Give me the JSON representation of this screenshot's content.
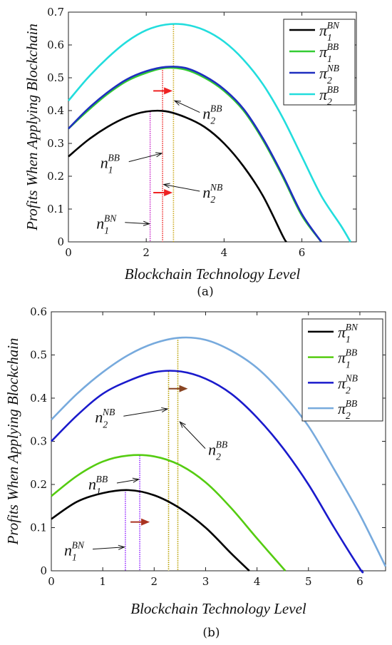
{
  "chart_data": [
    {
      "panel": "a",
      "type": "line",
      "caption": "(a)",
      "xlabel": "Blockchain Technology Level",
      "ylabel": "Profits When Applying Blockchain",
      "xlim": [
        0,
        7.4
      ],
      "ylim": [
        0,
        0.7
      ],
      "xticks": [
        0,
        2,
        4,
        6
      ],
      "yticks": [
        0,
        0.1,
        0.2,
        0.3,
        0.4,
        0.5,
        0.6,
        0.7
      ],
      "grid": false,
      "legend_position": "top-right",
      "series": [
        {
          "name": "π1BN",
          "base": "π",
          "sub": "1",
          "sup": "BN",
          "color": "#000000",
          "x": [
            0,
            0.5,
            1,
            1.5,
            2,
            2.5,
            3,
            3.5,
            4,
            4.5,
            5,
            5.5,
            5.6
          ],
          "y": [
            0.26,
            0.31,
            0.35,
            0.38,
            0.397,
            0.398,
            0.38,
            0.35,
            0.3,
            0.23,
            0.14,
            0.02,
            0
          ]
        },
        {
          "name": "π1BB",
          "base": "π",
          "sub": "1",
          "sup": "BB",
          "color": "#33cc33",
          "x": [
            0,
            0.5,
            1,
            1.5,
            2,
            2.5,
            3,
            3.5,
            4,
            4.5,
            5,
            5.5,
            6,
            6.5
          ],
          "y": [
            0.345,
            0.4,
            0.45,
            0.49,
            0.515,
            0.53,
            0.525,
            0.5,
            0.46,
            0.4,
            0.31,
            0.2,
            0.08,
            0
          ]
        },
        {
          "name": "π2NB",
          "base": "π",
          "sub": "2",
          "sup": "NB",
          "color": "#1f2fbf",
          "x": [
            0,
            0.5,
            1,
            1.5,
            2,
            2.5,
            3,
            3.5,
            4,
            4.5,
            5,
            5.5,
            6,
            6.5
          ],
          "y": [
            0.345,
            0.405,
            0.455,
            0.495,
            0.52,
            0.533,
            0.53,
            0.505,
            0.465,
            0.405,
            0.315,
            0.205,
            0.085,
            0
          ]
        },
        {
          "name": "π2BB",
          "base": "π",
          "sub": "2",
          "sup": "BB",
          "color": "#22dddd",
          "x": [
            0,
            0.5,
            1,
            1.5,
            2,
            2.5,
            3,
            3.5,
            4,
            4.5,
            5,
            5.5,
            6,
            6.5,
            7,
            7.25
          ],
          "y": [
            0.43,
            0.5,
            0.56,
            0.61,
            0.645,
            0.662,
            0.662,
            0.645,
            0.61,
            0.555,
            0.48,
            0.38,
            0.26,
            0.14,
            0.05,
            0
          ]
        }
      ],
      "vlines": [
        {
          "x": 2.1,
          "y": 0.397,
          "color": "#cc33cc"
        },
        {
          "x": 2.42,
          "y": 0.53,
          "color": "#ee3333"
        },
        {
          "x": 2.7,
          "y": 0.662,
          "color": "#ccaa22"
        }
      ],
      "arrows": [
        {
          "x": 2.42,
          "y": 0.15,
          "dir": "right",
          "color": "#ee2222"
        },
        {
          "x": 2.42,
          "y": 0.46,
          "dir": "right",
          "color": "#ee2222"
        }
      ],
      "annotations": [
        {
          "base": "n",
          "sub": "1",
          "sup": "BN",
          "tx": 0.72,
          "ty": 0.055,
          "ax": 2.08,
          "ay": 0.055
        },
        {
          "base": "n",
          "sub": "1",
          "sup": "BB",
          "tx": 0.82,
          "ty": 0.24,
          "ax": 2.4,
          "ay": 0.27
        },
        {
          "base": "n",
          "sub": "2",
          "sup": "NB",
          "tx": 3.45,
          "ty": 0.15,
          "ax": 2.45,
          "ay": 0.175
        },
        {
          "base": "n",
          "sub": "2",
          "sup": "BB",
          "tx": 3.45,
          "ty": 0.39,
          "ax": 2.73,
          "ay": 0.43
        }
      ]
    },
    {
      "panel": "b",
      "type": "line",
      "caption": "(b)",
      "xlabel": "Blockchain Technology Level",
      "ylabel": "Profits When Applying Blockchain",
      "xlim": [
        0,
        6.5
      ],
      "ylim": [
        0,
        0.6
      ],
      "xticks": [
        0,
        1,
        2,
        3,
        4,
        5,
        6
      ],
      "yticks": [
        0,
        0.1,
        0.2,
        0.3,
        0.4,
        0.5,
        0.6
      ],
      "grid": false,
      "legend_position": "top-right",
      "series": [
        {
          "name": "π1BN",
          "base": "π",
          "sub": "1",
          "sup": "BN",
          "color": "#000000",
          "x": [
            0,
            0.5,
            1,
            1.5,
            2,
            2.5,
            3,
            3.5,
            3.85
          ],
          "y": [
            0.12,
            0.16,
            0.18,
            0.187,
            0.175,
            0.145,
            0.1,
            0.04,
            0
          ]
        },
        {
          "name": "π1BB",
          "base": "π",
          "sub": "1",
          "sup": "BB",
          "color": "#55cc11",
          "x": [
            0,
            0.5,
            1,
            1.5,
            2,
            2.5,
            3,
            3.5,
            4,
            4.55
          ],
          "y": [
            0.173,
            0.22,
            0.253,
            0.267,
            0.265,
            0.245,
            0.205,
            0.145,
            0.075,
            0
          ]
        },
        {
          "name": "π2NB",
          "base": "π",
          "sub": "2",
          "sup": "NB",
          "color": "#1a1acc",
          "x": [
            0,
            0.5,
            1,
            1.5,
            2,
            2.5,
            3,
            3.5,
            4,
            4.5,
            5,
            5.5,
            6,
            6.05
          ],
          "y": [
            0.3,
            0.36,
            0.41,
            0.44,
            0.46,
            0.462,
            0.445,
            0.41,
            0.355,
            0.285,
            0.2,
            0.1,
            0.005,
            0
          ]
        },
        {
          "name": "π2BB",
          "base": "π",
          "sub": "2",
          "sup": "BB",
          "color": "#77aadd",
          "x": [
            0,
            0.5,
            1,
            1.5,
            2,
            2.5,
            3,
            3.5,
            4,
            4.5,
            5,
            5.5,
            6,
            6.5
          ],
          "y": [
            0.35,
            0.41,
            0.46,
            0.5,
            0.527,
            0.54,
            0.535,
            0.51,
            0.47,
            0.41,
            0.335,
            0.235,
            0.13,
            0.01
          ]
        }
      ],
      "vlines": [
        {
          "x": 1.44,
          "y": 0.187,
          "color": "#9933ff"
        },
        {
          "x": 1.72,
          "y": 0.267,
          "color": "#9933ff"
        },
        {
          "x": 2.28,
          "y": 0.462,
          "color": "#b8a000"
        },
        {
          "x": 2.46,
          "y": 0.54,
          "color": "#b8a000"
        }
      ],
      "arrows": [
        {
          "x": 1.72,
          "y": 0.113,
          "dir": "right",
          "color": "#aa3322"
        },
        {
          "x": 2.46,
          "y": 0.422,
          "dir": "right",
          "color": "#884422"
        }
      ],
      "annotations": [
        {
          "base": "n",
          "sub": "1",
          "sup": "BN",
          "tx": 0.25,
          "ty": 0.047,
          "ax": 1.42,
          "ay": 0.055
        },
        {
          "base": "n",
          "sub": "1",
          "sup": "BB",
          "tx": 0.72,
          "ty": 0.2,
          "ax": 1.7,
          "ay": 0.212
        },
        {
          "base": "n",
          "sub": "2",
          "sup": "NB",
          "tx": 0.85,
          "ty": 0.355,
          "ax": 2.26,
          "ay": 0.375
        },
        {
          "base": "n",
          "sub": "2",
          "sup": "BB",
          "tx": 3.05,
          "ty": 0.28,
          "ax": 2.5,
          "ay": 0.345
        }
      ]
    }
  ]
}
